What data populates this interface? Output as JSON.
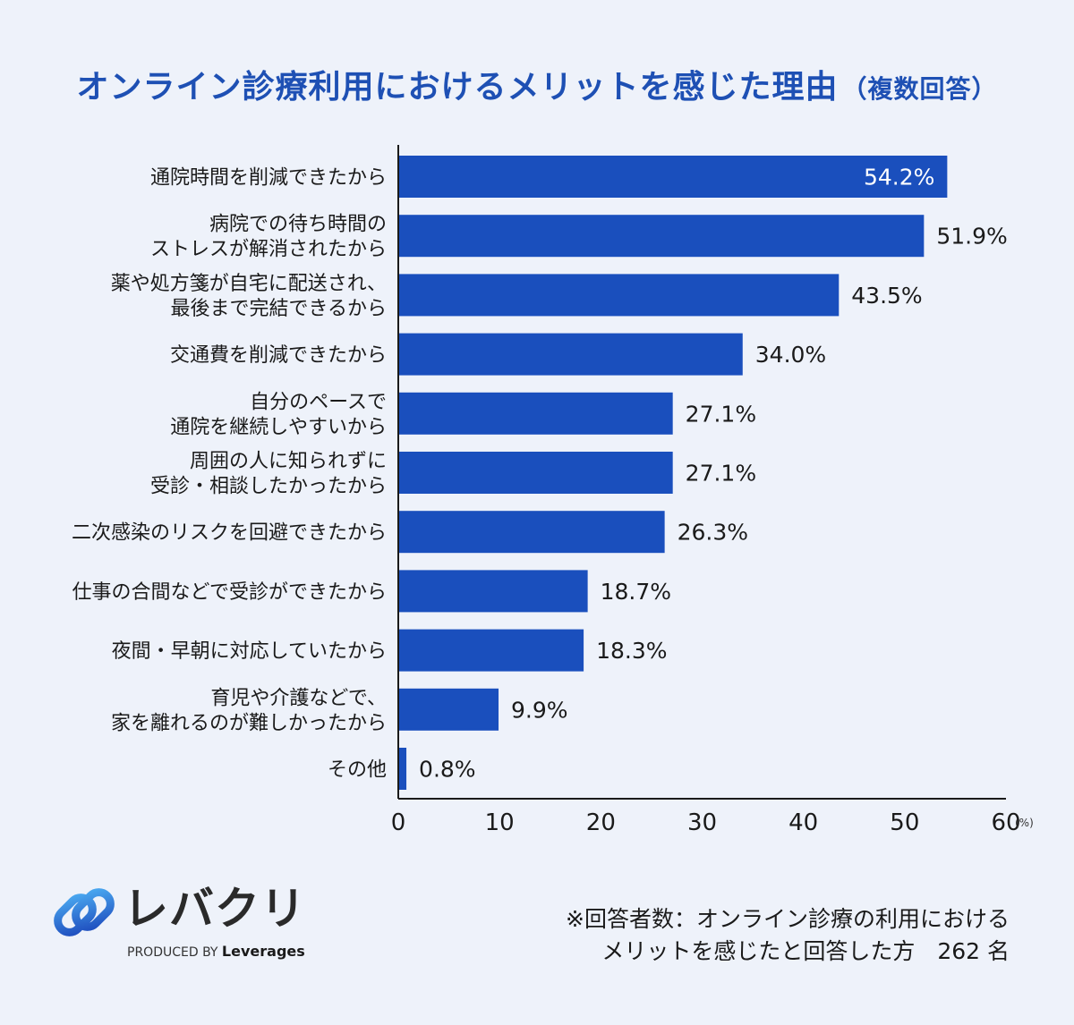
{
  "header": {
    "title": "オンライン診療利用におけるメリットを感じた理由",
    "subtitle": "（複数回答）"
  },
  "chart_data": {
    "type": "bar",
    "orientation": "horizontal",
    "title": "オンライン診療利用におけるメリットを感じた理由（複数回答）",
    "categories": [
      [
        "通院時間を削減できたから"
      ],
      [
        "病院での待ち時間の",
        "ストレスが解消されたから"
      ],
      [
        "薬や処方箋が自宅に配送され、",
        "最後まで完結できるから"
      ],
      [
        "交通費を削減できたから"
      ],
      [
        "自分のペースで",
        "通院を継続しやすいから"
      ],
      [
        "周囲の人に知られずに",
        "受診・相談したかったから"
      ],
      [
        "二次感染のリスクを回避できたから"
      ],
      [
        "仕事の合間などで受診ができたから"
      ],
      [
        "夜間・早朝に対応していたから"
      ],
      [
        "育児や介護などで、",
        "家を離れるのが難しかったから"
      ],
      [
        "その他"
      ]
    ],
    "values": [
      54.2,
      51.9,
      43.5,
      34.0,
      27.1,
      27.1,
      26.3,
      18.7,
      18.3,
      9.9,
      0.8
    ],
    "value_labels": [
      "54.2%",
      "51.9%",
      "43.5%",
      "34.0%",
      "27.1%",
      "27.1%",
      "26.3%",
      "18.7%",
      "18.3%",
      "9.9%",
      "0.8%"
    ],
    "xlim": [
      0,
      60
    ],
    "x_ticks": [
      "0",
      "10",
      "20",
      "30",
      "40",
      "50",
      "60"
    ],
    "x_unit": "(%)",
    "bar_color": "#1a4fbd",
    "grid": false
  },
  "branding": {
    "logo_text": "レバクリ",
    "produced_by": "PRODUCED BY",
    "company": "Leverages",
    "logo_icon": "link-chain-icon"
  },
  "footnote": {
    "line1": "※回答者数：オンライン診療の利用における",
    "line2": "メリットを感じたと回答した方　262 名"
  }
}
